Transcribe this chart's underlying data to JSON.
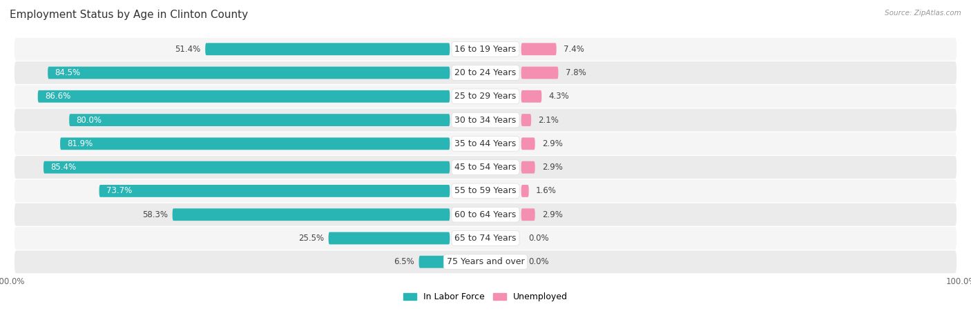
{
  "title": "Employment Status by Age in Clinton County",
  "source": "Source: ZipAtlas.com",
  "categories": [
    "16 to 19 Years",
    "20 to 24 Years",
    "25 to 29 Years",
    "30 to 34 Years",
    "35 to 44 Years",
    "45 to 54 Years",
    "55 to 59 Years",
    "60 to 64 Years",
    "65 to 74 Years",
    "75 Years and over"
  ],
  "labor_force": [
    51.4,
    84.5,
    86.6,
    80.0,
    81.9,
    85.4,
    73.7,
    58.3,
    25.5,
    6.5
  ],
  "unemployed": [
    7.4,
    7.8,
    4.3,
    2.1,
    2.9,
    2.9,
    1.6,
    2.9,
    0.0,
    0.0
  ],
  "labor_force_color": "#2ab5b5",
  "unemployed_color": "#f48fb1",
  "bg_even_color": "#f5f5f5",
  "bg_odd_color": "#ebebeb",
  "bar_height": 0.52,
  "title_fontsize": 11,
  "label_fontsize": 8.5,
  "cat_fontsize": 9.0,
  "axis_max": 100.0,
  "legend_lf": "In Labor Force",
  "legend_un": "Unemployed",
  "lf_inside_threshold": 65
}
